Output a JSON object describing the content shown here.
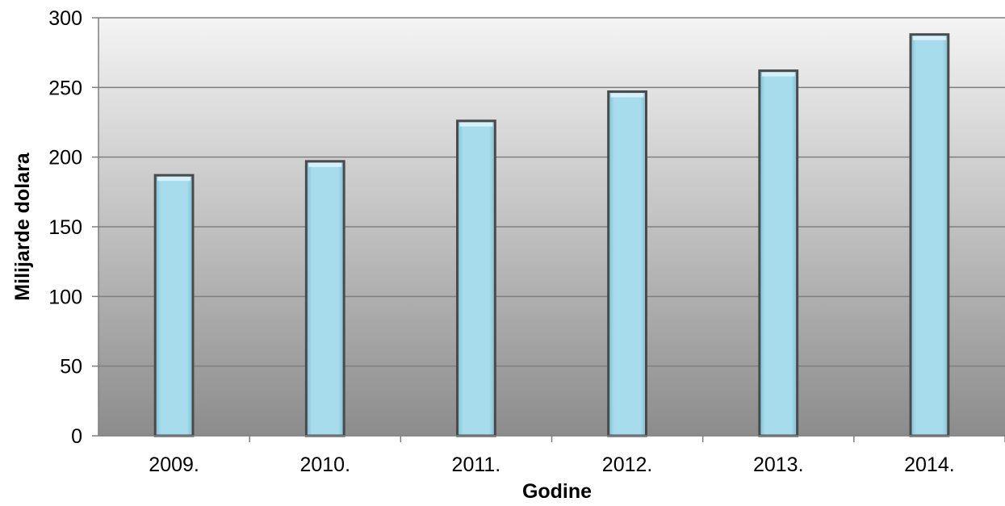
{
  "chart_data": {
    "type": "bar",
    "title": "",
    "xlabel": "Godine",
    "ylabel": "Milijarde dolara",
    "categories": [
      "2009.",
      "2010.",
      "2011.",
      "2012.",
      "2013.",
      "2014."
    ],
    "values": [
      187,
      197,
      226,
      247,
      262,
      288
    ],
    "ylim": [
      0,
      300
    ],
    "yticks": [
      "0",
      "50",
      "100",
      "150",
      "200",
      "250",
      "300"
    ],
    "grid": true,
    "legend": "none",
    "colors": {
      "bar_fill": "#9dd6e8",
      "bar_edge": "#4a4a4a",
      "plot_bg_top": "#f4f4f4",
      "plot_bg_bottom": "#8c8c8c",
      "gridline": "#7f7f7f"
    }
  }
}
